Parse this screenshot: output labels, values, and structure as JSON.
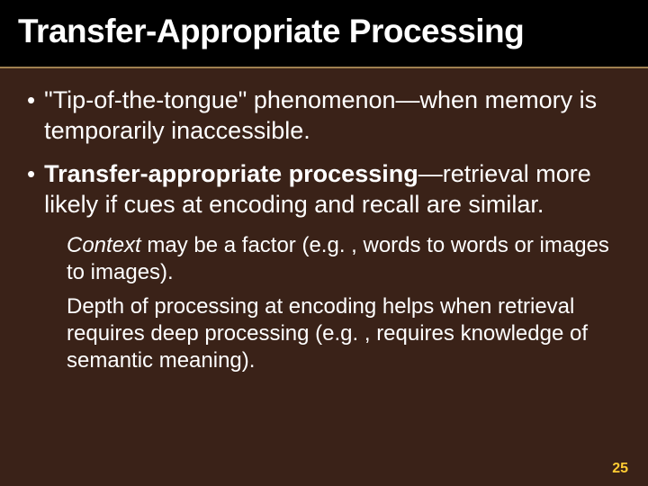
{
  "slide": {
    "title": "Transfer-Appropriate Processing",
    "bullets": [
      {
        "prefix": "\"Tip-of-the-tongue\" phenomenon",
        "rest": "—when memory is temporarily inaccessible."
      },
      {
        "bold_prefix": "Transfer-appropriate processing",
        "rest": "—retrieval more likely if cues at encoding and recall are similar."
      }
    ],
    "sub_bullets": [
      {
        "italic_prefix": "Context",
        "rest": " may be a factor (e.g. , words to words or images to images)."
      },
      {
        "text": "Depth of processing at encoding helps when retrieval requires deep processing (e.g. , requires knowledge of semantic meaning)."
      }
    ],
    "page_number": "25"
  },
  "style": {
    "background_color": "#3a2218",
    "title_bg": "#000000",
    "title_color": "#ffffff",
    "divider_color": "#a08050",
    "text_color": "#ffffff",
    "page_number_color": "#ffcc33",
    "title_fontsize": 37,
    "bullet_fontsize": 27,
    "sub_fontsize": 24,
    "page_number_fontsize": 16
  }
}
